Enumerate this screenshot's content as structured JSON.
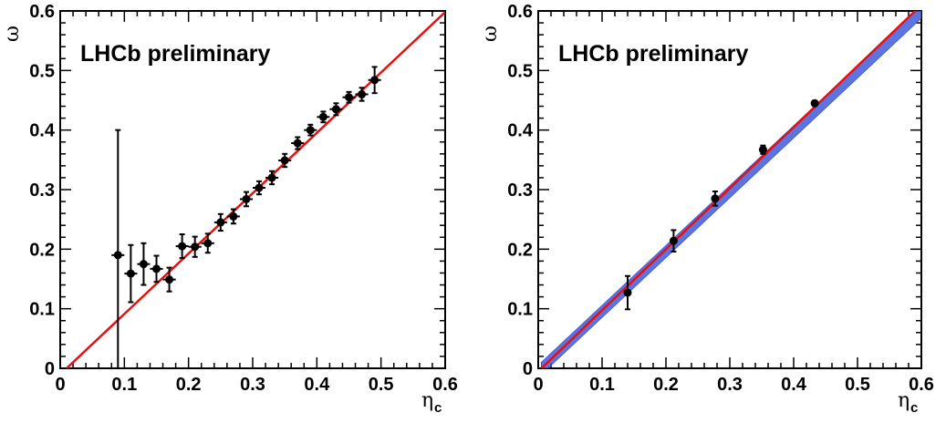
{
  "chart_data": [
    {
      "type": "scatter",
      "annotation": "LHCb preliminary",
      "xlabel": "η",
      "xlabel_sub": "c",
      "ylabel": "ω",
      "xlim": [
        0,
        0.6
      ],
      "ylim": [
        0,
        0.6
      ],
      "xticks": [
        "0",
        "0.1",
        "0.2",
        "0.3",
        "0.4",
        "0.5",
        "0.6"
      ],
      "yticks": [
        "0",
        "0.1",
        "0.2",
        "0.3",
        "0.4",
        "0.5",
        "0.6"
      ],
      "grid": false,
      "fit_line": {
        "x": [
          0.01,
          0.6
        ],
        "y": [
          0,
          0.598
        ],
        "color": "#e8100e"
      },
      "series": [
        {
          "color": "#000000",
          "x": [
            0.09,
            0.11,
            0.13,
            0.15,
            0.17,
            0.19,
            0.21,
            0.23,
            0.25,
            0.27,
            0.29,
            0.31,
            0.33,
            0.35,
            0.37,
            0.39,
            0.41,
            0.43,
            0.45,
            0.47,
            0.49
          ],
          "xerr": [
            0.01,
            0.01,
            0.01,
            0.01,
            0.01,
            0.01,
            0.01,
            0.01,
            0.01,
            0.01,
            0.01,
            0.01,
            0.01,
            0.01,
            0.01,
            0.01,
            0.01,
            0.01,
            0.01,
            0.01,
            0.01
          ],
          "y": [
            0.19,
            0.159,
            0.175,
            0.167,
            0.149,
            0.205,
            0.204,
            0.21,
            0.245,
            0.255,
            0.284,
            0.303,
            0.32,
            0.349,
            0.378,
            0.4,
            0.422,
            0.435,
            0.455,
            0.46,
            0.484
          ],
          "yerr": [
            0.21,
            0.048,
            0.035,
            0.022,
            0.02,
            0.02,
            0.017,
            0.016,
            0.014,
            0.012,
            0.012,
            0.011,
            0.011,
            0.011,
            0.01,
            0.009,
            0.009,
            0.01,
            0.009,
            0.011,
            0.022
          ]
        }
      ]
    },
    {
      "type": "scatter",
      "annotation": "LHCb preliminary",
      "xlabel": "η",
      "xlabel_sub": "c",
      "ylabel": "ω",
      "xlim": [
        0,
        0.6
      ],
      "ylim": [
        0,
        0.6
      ],
      "xticks": [
        "0",
        "0.1",
        "0.2",
        "0.3",
        "0.4",
        "0.5",
        "0.6"
      ],
      "yticks": [
        "0",
        "0.1",
        "0.2",
        "0.3",
        "0.4",
        "0.5",
        "0.6"
      ],
      "grid": false,
      "fit_line": {
        "x": [
          0.005,
          0.6
        ],
        "y": [
          0,
          0.61
        ],
        "color": "#e8100e"
      },
      "band": {
        "x": [
          0.005,
          0.6
        ],
        "y": [
          0,
          0.598
        ],
        "halfwidth": 0.01,
        "color": "#3a54d8"
      },
      "series": [
        {
          "color": "#000000",
          "x": [
            0.14,
            0.212,
            0.277,
            0.352,
            0.433
          ],
          "xerr": [
            0,
            0,
            0,
            0,
            0
          ],
          "y": [
            0.127,
            0.214,
            0.285,
            0.367,
            0.445
          ],
          "yerr": [
            0.028,
            0.018,
            0.012,
            0.007,
            0.004
          ]
        }
      ]
    }
  ]
}
